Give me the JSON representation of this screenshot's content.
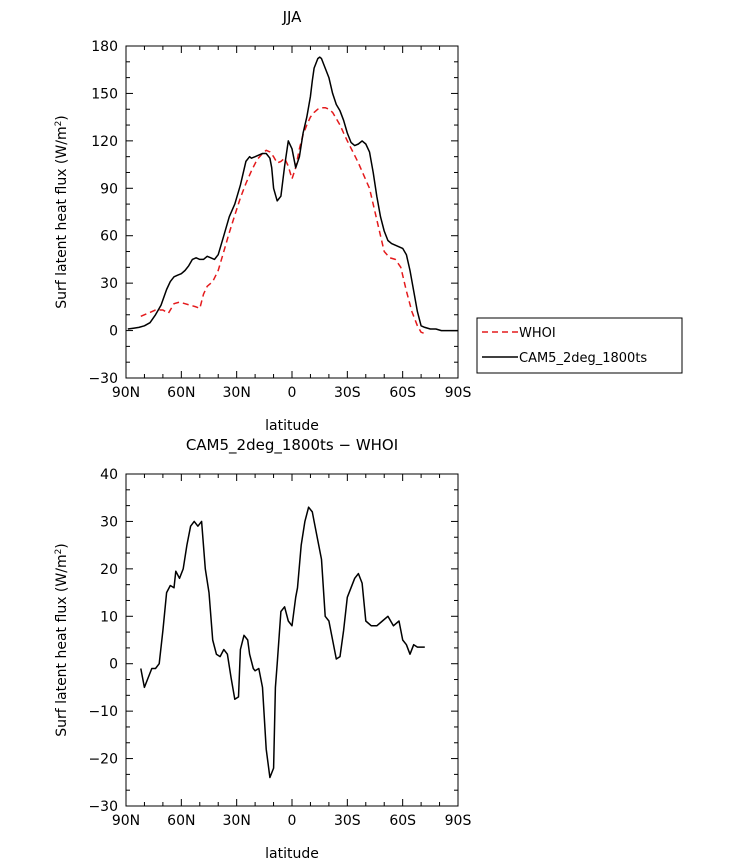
{
  "chart_data": [
    {
      "type": "line",
      "title": "JJA",
      "xlabel": "latitude",
      "ylabel": "Surf latent heat flux (W/m²)",
      "ylabel_main": "Surf latent heat flux (W/m",
      "ylabel_sup": "2",
      "ylabel_end": ")",
      "xlim": [
        90,
        -90
      ],
      "ylim": [
        -30,
        180
      ],
      "xticks": [
        {
          "value": 90,
          "label": "90N"
        },
        {
          "value": 60,
          "label": "60N"
        },
        {
          "value": 30,
          "label": "30N"
        },
        {
          "value": 0,
          "label": "0"
        },
        {
          "value": -30,
          "label": "30S"
        },
        {
          "value": -60,
          "label": "60S"
        },
        {
          "value": -90,
          "label": "90S"
        }
      ],
      "yticks": [
        {
          "value": -30,
          "label": "−30"
        },
        {
          "value": 0,
          "label": "0"
        },
        {
          "value": 30,
          "label": "30"
        },
        {
          "value": 60,
          "label": "60"
        },
        {
          "value": 90,
          "label": "90"
        },
        {
          "value": 120,
          "label": "120"
        },
        {
          "value": 150,
          "label": "150"
        },
        {
          "value": 180,
          "label": "180"
        }
      ],
      "legend": {
        "placement": "right"
      },
      "series": [
        {
          "name": "WHOI",
          "color": "#e41a1c",
          "dash": "dashed",
          "x": [
            82,
            78,
            74,
            70,
            67,
            64,
            61,
            58,
            55,
            52,
            50,
            48,
            46,
            43,
            40,
            37,
            34,
            31,
            28,
            25,
            22,
            19,
            16,
            14,
            12,
            10,
            8,
            6,
            4,
            2,
            0,
            -2,
            -4,
            -6,
            -8,
            -10,
            -12,
            -14,
            -16,
            -18,
            -20,
            -22,
            -24,
            -26,
            -28,
            -30,
            -33,
            -36,
            -39,
            -42,
            -45,
            -48,
            -50,
            -53,
            -56,
            -59,
            -62,
            -65,
            -68,
            -70,
            -72
          ],
          "y": [
            9,
            11,
            13,
            13,
            11,
            17,
            18,
            17,
            16,
            15,
            14,
            23,
            28,
            31,
            38,
            50,
            62,
            73,
            84,
            93,
            101,
            108,
            112,
            114,
            113,
            110,
            106,
            107,
            109,
            104,
            96,
            103,
            115,
            124,
            130,
            135,
            138,
            140,
            141,
            141,
            140,
            138,
            134,
            130,
            125,
            120,
            113,
            106,
            98,
            90,
            75,
            60,
            50,
            46,
            45,
            40,
            25,
            12,
            3,
            -1,
            -2
          ]
        },
        {
          "name": "CAM5_2deg_1800ts",
          "color": "#000000",
          "dash": "solid",
          "x": [
            89,
            86,
            83,
            80,
            77,
            74,
            71,
            68,
            66,
            64,
            62,
            60,
            58,
            56,
            54,
            52,
            50,
            48,
            46,
            44,
            42,
            40,
            37,
            34,
            31,
            28,
            25,
            23,
            22,
            20,
            18,
            16,
            14,
            12,
            11,
            10,
            8,
            6,
            4,
            2,
            0,
            -2,
            -4,
            -6,
            -8,
            -10,
            -11,
            -12,
            -14,
            -15,
            -16,
            -18,
            -20,
            -22,
            -24,
            -26,
            -28,
            -30,
            -32,
            -34,
            -36,
            -38,
            -40,
            -42,
            -44,
            -46,
            -48,
            -50,
            -52,
            -54,
            -56,
            -58,
            -60,
            -62,
            -64,
            -66,
            -68,
            -70,
            -72,
            -75,
            -78,
            -81,
            -84,
            -87,
            -90
          ],
          "y": [
            1,
            1.5,
            2,
            3,
            5,
            10,
            16,
            26,
            31,
            34,
            35,
            36,
            38,
            41,
            45,
            46,
            45,
            45,
            47,
            46,
            45,
            48,
            60,
            72,
            80,
            92,
            107,
            110,
            109,
            110,
            111,
            112,
            112,
            109,
            103,
            90,
            82,
            85,
            104,
            120,
            115,
            103,
            110,
            125,
            135,
            148,
            158,
            166,
            172,
            173,
            172,
            166,
            160,
            150,
            143,
            139,
            133,
            125,
            119,
            117,
            118,
            120,
            118,
            113,
            100,
            85,
            72,
            63,
            57,
            55,
            54,
            53,
            52,
            48,
            38,
            25,
            12,
            3,
            2,
            1,
            1,
            0,
            0,
            0,
            0
          ]
        }
      ]
    },
    {
      "type": "line",
      "title": "CAM5_2deg_1800ts − WHOI",
      "xlabel": "latitude",
      "ylabel": "Surf latent heat flux (W/m²)",
      "ylabel_main": "Surf latent heat flux (W/m",
      "ylabel_sup": "2",
      "ylabel_end": ")",
      "xlim": [
        90,
        -90
      ],
      "ylim": [
        -30,
        40
      ],
      "xticks": [
        {
          "value": 90,
          "label": "90N"
        },
        {
          "value": 60,
          "label": "60N"
        },
        {
          "value": 30,
          "label": "30N"
        },
        {
          "value": 0,
          "label": "0"
        },
        {
          "value": -30,
          "label": "30S"
        },
        {
          "value": -60,
          "label": "60S"
        },
        {
          "value": -90,
          "label": "90S"
        }
      ],
      "yticks": [
        {
          "value": -30,
          "label": "−30"
        },
        {
          "value": -20,
          "label": "−20"
        },
        {
          "value": -10,
          "label": "−10"
        },
        {
          "value": 0,
          "label": "0"
        },
        {
          "value": 10,
          "label": "10"
        },
        {
          "value": 20,
          "label": "20"
        },
        {
          "value": 30,
          "label": "30"
        },
        {
          "value": 40,
          "label": "40"
        }
      ],
      "series": [
        {
          "name": "",
          "color": "#000000",
          "dash": "solid",
          "x": [
            82,
            80,
            78,
            76,
            74,
            72,
            70,
            68,
            66,
            64,
            63,
            61,
            59,
            57,
            55,
            53,
            51,
            49,
            47,
            45,
            43,
            41,
            39,
            37,
            35,
            33,
            31,
            29,
            28,
            26,
            24,
            23,
            21,
            20,
            18,
            16,
            14,
            12,
            10,
            9,
            8,
            6,
            4,
            2,
            0,
            -2,
            -3,
            -5,
            -7,
            -9,
            -11,
            -12,
            -14,
            -16,
            -18,
            -20,
            -22,
            -24,
            -26,
            -28,
            -30,
            -32,
            -34,
            -36,
            -38,
            -40,
            -43,
            -46,
            -49,
            -52,
            -55,
            -58,
            -60,
            -62,
            -64,
            -66,
            -68,
            -70,
            -72
          ],
          "y": [
            -1,
            -5,
            -3,
            -1,
            -1,
            0,
            7,
            15,
            16.5,
            16,
            19.5,
            18,
            20,
            25,
            29,
            30,
            29,
            30,
            20,
            15,
            5,
            2,
            1.5,
            3,
            2,
            -3,
            -7.5,
            -7,
            3,
            6,
            5,
            2,
            -1,
            -1.5,
            -1,
            -5,
            -18,
            -24,
            -22,
            -5,
            0,
            11,
            12,
            9,
            8,
            14,
            16,
            25,
            30,
            33,
            32,
            30,
            26,
            22,
            10,
            9,
            5,
            1,
            1.5,
            7,
            14,
            16,
            18,
            19,
            17,
            9,
            8,
            8,
            9,
            10,
            8,
            9,
            5,
            4,
            2,
            4,
            3.5,
            3.5,
            3.5
          ]
        }
      ]
    }
  ]
}
